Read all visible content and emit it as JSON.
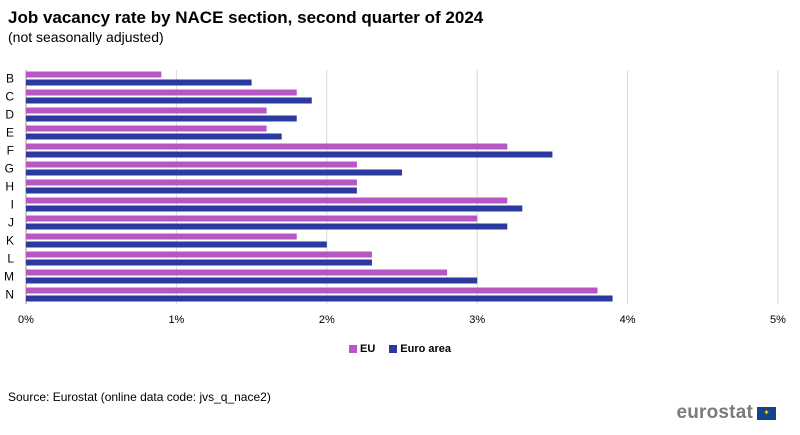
{
  "header": {
    "title": "Job vacancy rate by NACE section, second quarter of 2024",
    "subtitle": "(not seasonally adjusted)"
  },
  "source": "Source: Eurostat (online data code: jvs_q_nace2)",
  "logo": {
    "text": "eurostat",
    "flag_icon": "eu-flag-icon"
  },
  "chart_data": {
    "type": "bar",
    "orientation": "horizontal",
    "categories": [
      "B",
      "C",
      "D",
      "E",
      "F",
      "G",
      "H",
      "I",
      "J",
      "K",
      "L",
      "M",
      "N"
    ],
    "series": [
      {
        "name": "EU",
        "color": "#b556c3",
        "values": [
          0.9,
          1.8,
          1.6,
          1.6,
          3.2,
          2.2,
          2.2,
          3.2,
          3.0,
          1.8,
          2.3,
          2.8,
          3.8
        ]
      },
      {
        "name": "Euro area",
        "color": "#2a3a9e",
        "values": [
          1.5,
          1.9,
          1.8,
          1.7,
          3.5,
          2.5,
          2.2,
          3.3,
          3.2,
          2.0,
          2.3,
          3.0,
          3.9
        ]
      }
    ],
    "xlim": [
      0,
      5
    ],
    "xticks": [
      0,
      1,
      2,
      3,
      4,
      5
    ],
    "xtick_labels": [
      "0%",
      "1%",
      "2%",
      "3%",
      "4%",
      "5%"
    ],
    "unit": "%",
    "grid": "vertical",
    "legend_position": "bottom-center"
  }
}
